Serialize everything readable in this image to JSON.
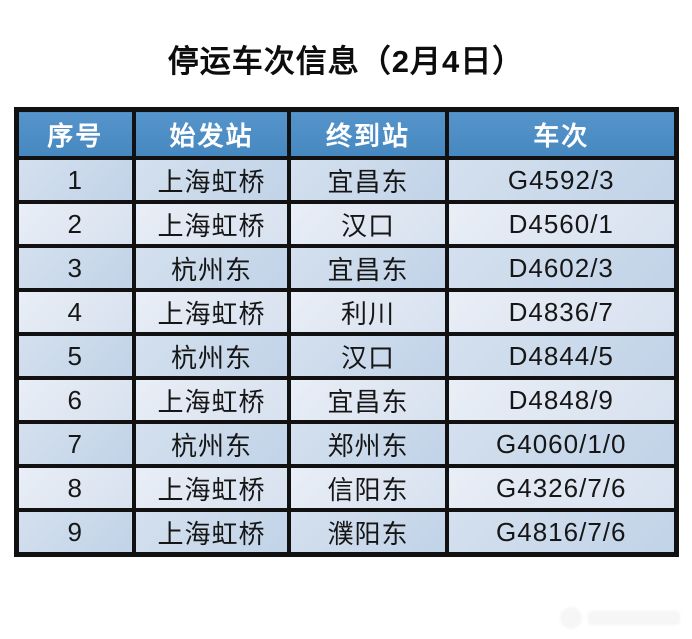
{
  "title": "停运车次信息（2月4日）",
  "chart_data": {
    "type": "table",
    "title": "停运车次信息（2月4日）",
    "columns": [
      "序号",
      "始发站",
      "终到站",
      "车次"
    ],
    "rows": [
      [
        "1",
        "上海虹桥",
        "宜昌东",
        "G4592/3"
      ],
      [
        "2",
        "上海虹桥",
        "汉口",
        "D4560/1"
      ],
      [
        "3",
        "杭州东",
        "宜昌东",
        "D4602/3"
      ],
      [
        "4",
        "上海虹桥",
        "利川",
        "D4836/7"
      ],
      [
        "5",
        "杭州东",
        "汉口",
        "D4844/5"
      ],
      [
        "6",
        "上海虹桥",
        "宜昌东",
        "D4848/9"
      ],
      [
        "7",
        "杭州东",
        "郑州东",
        "G4060/1/0"
      ],
      [
        "8",
        "上海虹桥",
        "信阳东",
        "G4326/7/6"
      ],
      [
        "9",
        "上海虹桥",
        "濮阳东",
        "G4816/7/6"
      ]
    ],
    "layout_hints": {
      "header_bg": "#4d8fc6",
      "header_text_color": "#ffffff",
      "row_odd_bg": "#c6d7ea",
      "row_even_bg": "#dfe7f3",
      "border_color": "#111111",
      "cell_text_color": "#161616",
      "alignment": "center"
    }
  }
}
